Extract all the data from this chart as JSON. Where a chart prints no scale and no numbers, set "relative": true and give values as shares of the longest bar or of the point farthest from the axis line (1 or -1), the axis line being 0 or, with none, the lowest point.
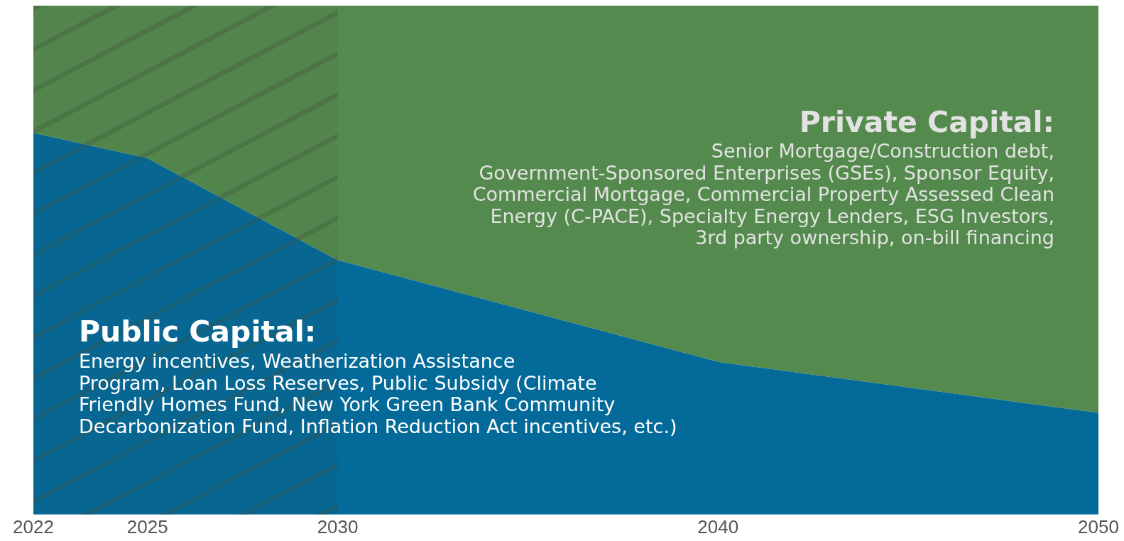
{
  "chart_data": {
    "type": "area",
    "stacked": true,
    "relative": true,
    "x": [
      2022,
      2025,
      2030,
      2040,
      2050
    ],
    "xlim": [
      2022,
      2050
    ],
    "xticks": [
      2022,
      2025,
      2030,
      2040,
      2050
    ],
    "grid": false,
    "legend": false,
    "series": [
      {
        "color": "#036a9a",
        "values": [
          0.75,
          0.7,
          0.5,
          0.3,
          0.2
        ]
      },
      {
        "color": "#548a4d",
        "values": [
          0.25,
          0.3,
          0.5,
          0.7,
          0.8
        ]
      }
    ],
    "bands": [
      {
        "axis": "x",
        "from": 2022,
        "to": 2030,
        "color": "#3f4f3f"
      }
    ],
    "annotations": [
      "Public Capital:",
      "Energy incentives, Weatherization Assistance",
      "Program, Loan Loss Reserves, Public Subsidy (Climate",
      "Friendly Homes Fund, New York Green Bank Community",
      "Decarbonization Fund, Inflation Reduction Act incentives, etc.)",
      "Private Capital:",
      "Senior Mortgage/Construction debt,",
      "Government-Sponsored Enterprises (GSEs), Sponsor Equity,",
      "Commercial Mortgage, Commercial Property Assessed Clean",
      "Energy (C-PACE), Specialty Energy Lenders, ESG Investors,",
      "3rd party ownership, on-bill financing"
    ]
  }
}
